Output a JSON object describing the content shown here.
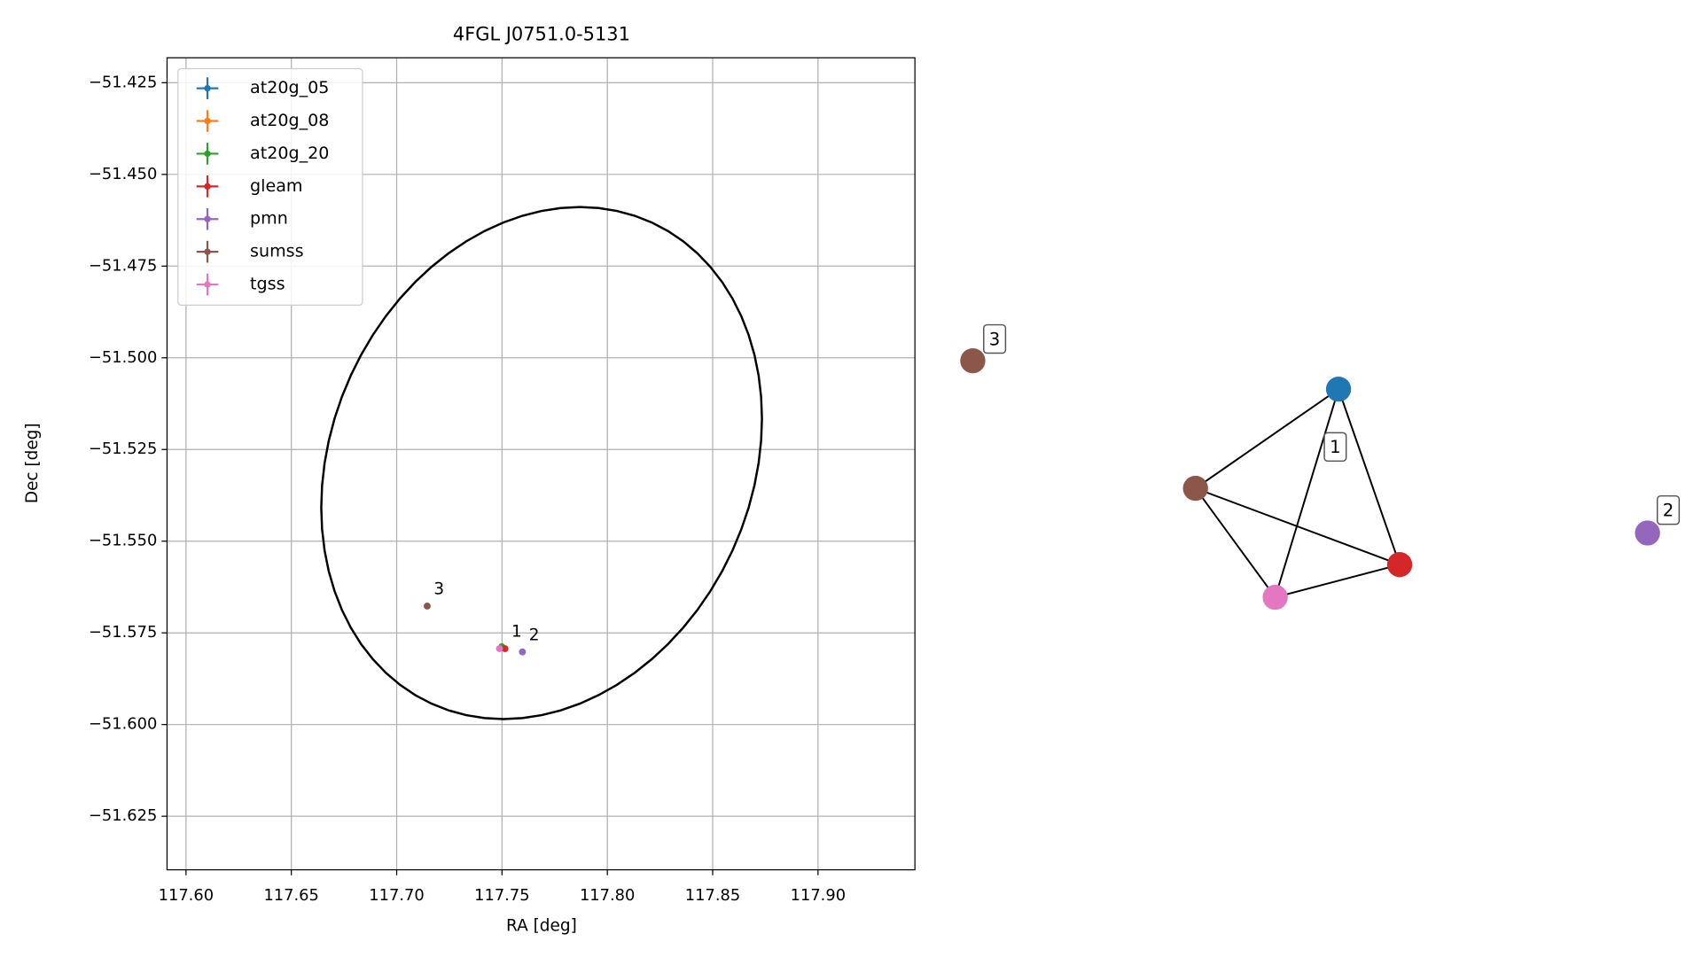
{
  "chart_data": [
    {
      "type": "scatter",
      "title": "4FGL J0751.0-5131",
      "x_label": "RA [deg]",
      "y_label": "Dec [deg]",
      "xlim": [
        117.591,
        117.946
      ],
      "ylim": [
        -51.6396,
        -51.4182
      ],
      "xticks": [
        {
          "value": 117.6,
          "label": "117.60"
        },
        {
          "value": 117.65,
          "label": "117.65"
        },
        {
          "value": 117.7,
          "label": "117.70"
        },
        {
          "value": 117.75,
          "label": "117.75"
        },
        {
          "value": 117.8,
          "label": "117.80"
        },
        {
          "value": 117.85,
          "label": "117.85"
        },
        {
          "value": 117.9,
          "label": "117.90"
        }
      ],
      "yticks": [
        {
          "value": -51.625,
          "label": "−51.625"
        },
        {
          "value": -51.6,
          "label": "−51.600"
        },
        {
          "value": -51.575,
          "label": "−51.575"
        },
        {
          "value": -51.55,
          "label": "−51.550"
        },
        {
          "value": -51.525,
          "label": "−51.525"
        },
        {
          "value": -51.5,
          "label": "−51.500"
        },
        {
          "value": -51.475,
          "label": "−51.475"
        },
        {
          "value": -51.45,
          "label": "−51.450"
        },
        {
          "value": -51.425,
          "label": "−51.425"
        }
      ],
      "grid": true,
      "legend": "upper left",
      "series": [
        {
          "name": "at20g_05",
          "color": "#1f77b4",
          "x": [
            117.7502
          ],
          "values": [
            -51.579
          ]
        },
        {
          "name": "at20g_08",
          "color": "#ff7f0e",
          "x": [
            117.7502
          ],
          "values": [
            -51.579
          ]
        },
        {
          "name": "at20g_20",
          "color": "#2ca02c",
          "x": [
            117.7499
          ],
          "values": [
            -51.5788
          ]
        },
        {
          "name": "gleam",
          "color": "#d62728",
          "x": [
            117.7514
          ],
          "values": [
            -51.5793
          ],
          "label": "1"
        },
        {
          "name": "pmn",
          "color": "#9467bd",
          "x": [
            117.7597
          ],
          "values": [
            -51.5802
          ],
          "label": "2"
        },
        {
          "name": "sumss",
          "color": "#8c564b",
          "x": [
            117.7145
          ],
          "values": [
            -51.5677
          ],
          "label": "3"
        },
        {
          "name": "tgss",
          "color": "#e377c2",
          "x": [
            117.7488
          ],
          "values": [
            -51.5793
          ]
        }
      ],
      "ellipse": {
        "ra": 117.7688,
        "dec": -51.5287,
        "half_width": 0.1046,
        "half_height": 0.0698,
        "tilt": 10,
        "color": "#000000"
      }
    },
    {
      "type": "graph",
      "nodes": [
        {
          "color": "#1f77b4"
        },
        {
          "color": "#8c564b"
        },
        {
          "color": "#e377c2"
        },
        {
          "color": "#d62728"
        },
        {
          "color": "#9467bd"
        },
        {
          "color": "#8c564b"
        }
      ],
      "edges": [
        [
          0,
          1
        ],
        [
          0,
          2
        ],
        [
          0,
          3
        ],
        [
          1,
          2
        ],
        [
          1,
          3
        ],
        [
          2,
          3
        ]
      ],
      "groups": [
        {
          "label": "1",
          "nodes": [
            0,
            1,
            2,
            3
          ]
        },
        {
          "label": "2",
          "nodes": [
            4
          ]
        },
        {
          "label": "3",
          "nodes": [
            5
          ]
        }
      ]
    }
  ]
}
